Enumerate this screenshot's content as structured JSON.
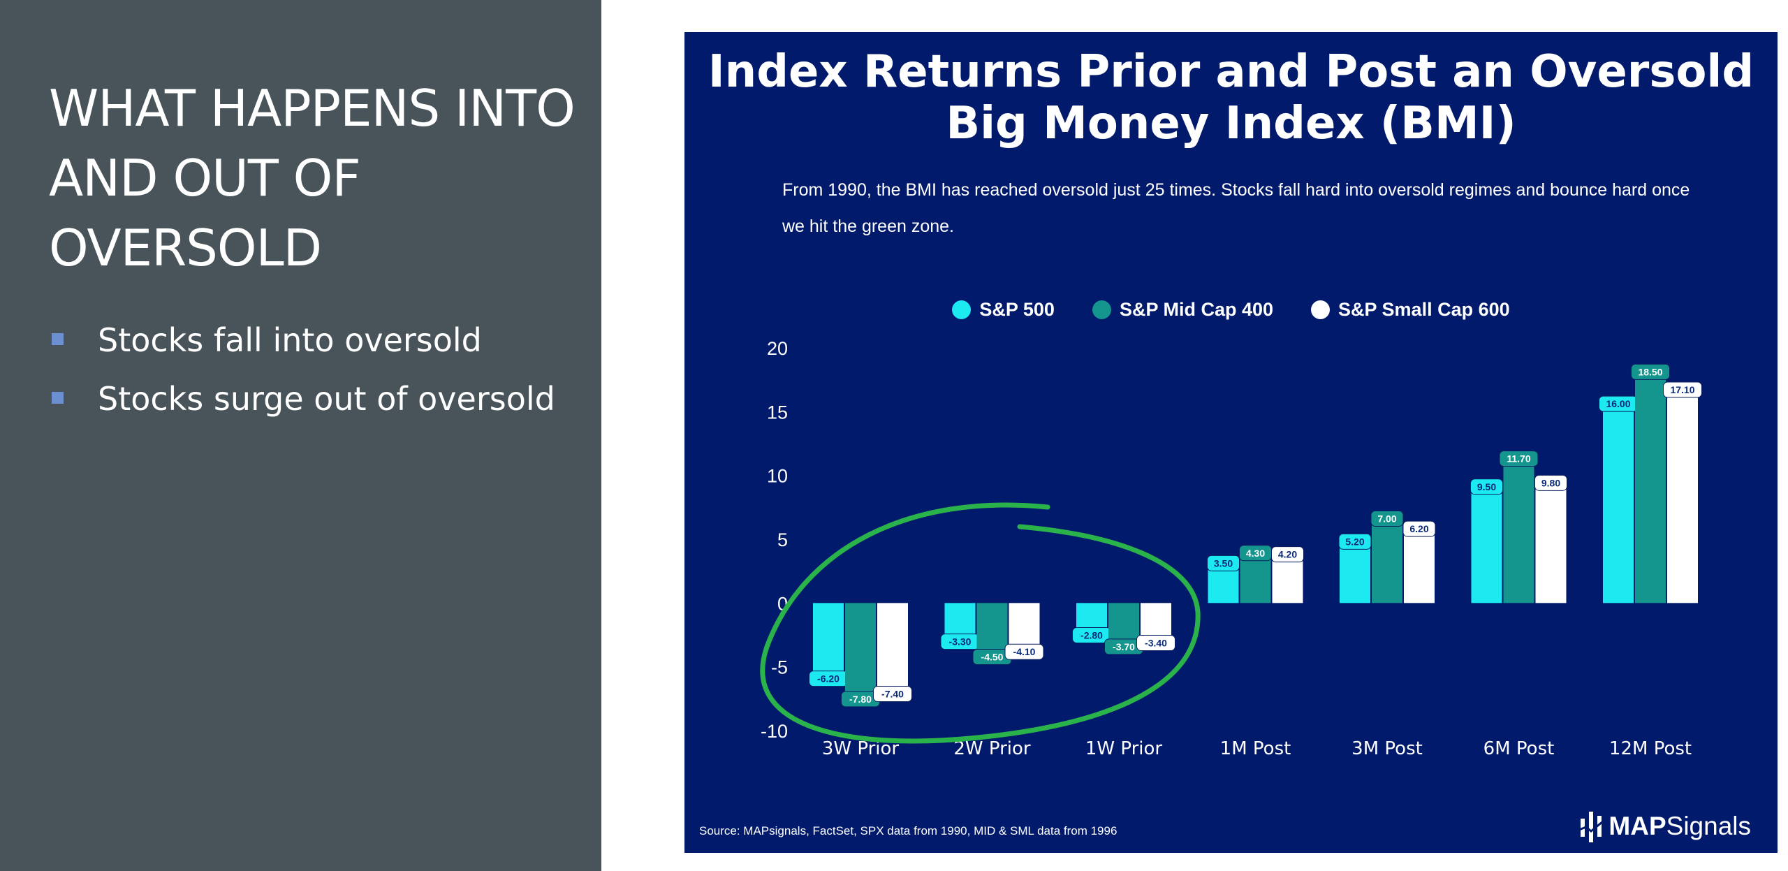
{
  "slide": {
    "title": "WHAT HAPPENS INTO AND OUT OF OVERSOLD",
    "bullets": [
      "Stocks fall into oversold",
      "Stocks surge out of oversold"
    ]
  },
  "chart_panel": {
    "subtitle": "From 1990, the BMI has reached oversold just 25 times. Stocks fall hard into oversold regimes and bounce hard once we hit the green zone.",
    "source": "Source: MAPsignals, FactSet, SPX data from 1990, MID & SML data from 1996",
    "brand_bold": "MAP",
    "brand_regular": "Signals",
    "brand_icon": "bar-chart-logo-icon",
    "background_color": "#021a6b"
  },
  "chart_data": {
    "type": "bar",
    "title": "Index Returns Prior and Post an Oversold Big Money Index (BMI)",
    "categories": [
      "3W Prior",
      "2W Prior",
      "1W Prior",
      "1M Post",
      "3M Post",
      "6M Post",
      "12M Post"
    ],
    "series": [
      {
        "name": "S&P 500",
        "color": "#1de9f0",
        "values": [
          -6.2,
          -3.3,
          -2.8,
          3.5,
          5.2,
          9.5,
          16.0
        ],
        "labels": [
          "-6.20",
          "-3.30",
          "-2.80",
          "3.50",
          "5.20",
          "9.50",
          "16.00"
        ]
      },
      {
        "name": "S&P Mid Cap 400",
        "color": "#14968e",
        "values": [
          -7.8,
          -4.5,
          -3.7,
          4.3,
          7.0,
          11.7,
          18.5
        ],
        "labels": [
          "-7.80",
          "-4.50",
          "-3.70",
          "4.30",
          "7.00",
          "11.70",
          "18.50"
        ]
      },
      {
        "name": "S&P Small Cap 600",
        "color": "#ffffff",
        "values": [
          -7.4,
          -4.1,
          -3.4,
          4.2,
          6.2,
          9.8,
          17.1
        ],
        "labels": [
          "-7.40",
          "-4.10",
          "-3.40",
          "4.20",
          "6.20",
          "9.80",
          "17.10"
        ]
      }
    ],
    "y_ticks": [
      "20",
      "15",
      "10",
      "5",
      "0",
      "-5",
      "-10"
    ],
    "ylim": [
      -10,
      20
    ],
    "grid": false,
    "legend_position": "top-center",
    "annotations": [
      {
        "type": "hand-drawn ellipse",
        "color": "#2bb34b",
        "around_categories": [
          "3W Prior",
          "2W Prior",
          "1W Prior"
        ]
      }
    ]
  }
}
